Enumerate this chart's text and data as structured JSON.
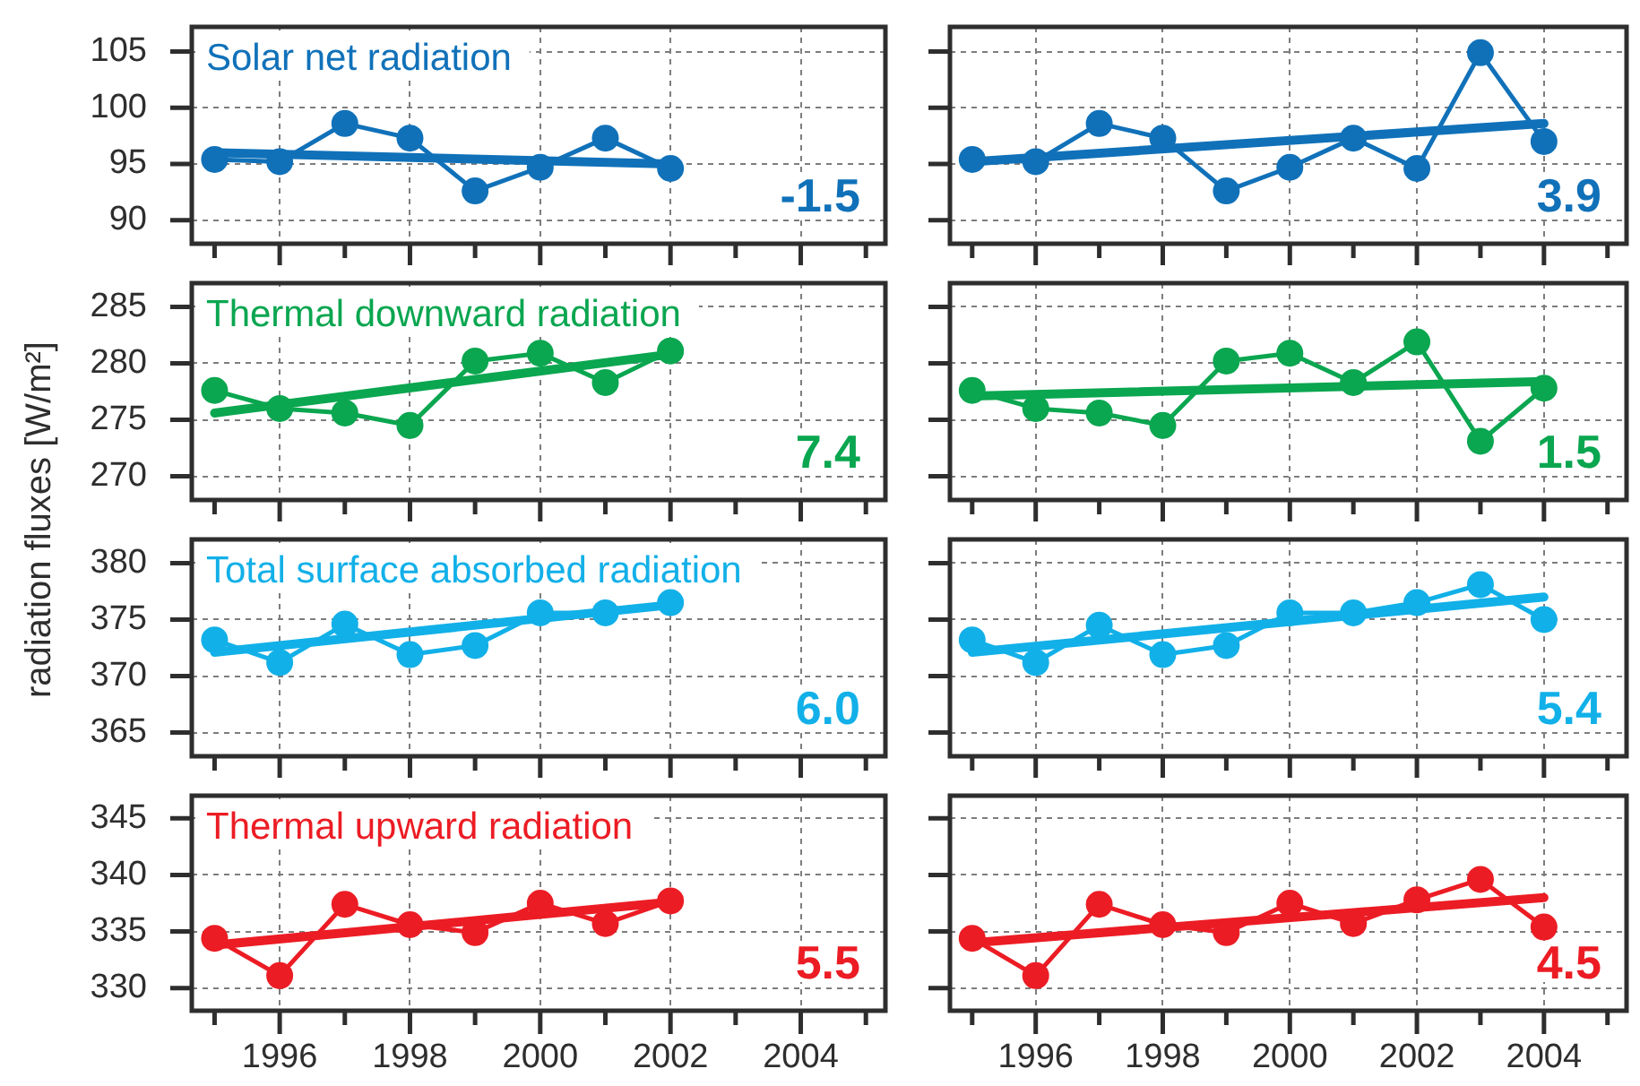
{
  "chart_data": [
    {
      "type": "line",
      "title": "Solar net radiation",
      "x": [
        1995,
        1996,
        1997,
        1998,
        1999,
        2000,
        2001,
        2002
      ],
      "series": [
        {
          "color": "#1071b9",
          "values": [
            95.4,
            95.2,
            98.6,
            97.3,
            92.6,
            94.7,
            97.3,
            94.6
          ]
        },
        {
          "type": "line",
          "color": "#1071b9",
          "x": [
            1995,
            2002
          ],
          "values": [
            96.0,
            95.0
          ],
          "marker": "none"
        }
      ],
      "annotations": [
        "-1.5"
      ],
      "xlim": [
        1994.65,
        2005.3
      ],
      "xticks": [
        {
          "value": 1995,
          "label": null
        },
        1996,
        {
          "value": 1997,
          "label": null
        },
        1998,
        {
          "value": 1999,
          "label": null
        },
        2000,
        {
          "value": 2001,
          "label": null
        },
        2002,
        {
          "value": 2003,
          "label": null
        },
        2004,
        {
          "value": 2005,
          "label": null
        }
      ],
      "ylim": [
        87.9,
        107.2
      ],
      "yticks": [
        90,
        95,
        100,
        105
      ],
      "grid": true,
      "marker": "circle",
      "tick_labels": "y"
    },
    {
      "type": "line",
      "x": [
        1995,
        1996,
        1997,
        1998,
        1999,
        2000,
        2001,
        2002,
        2003,
        2004
      ],
      "series": [
        {
          "color": "#1071b9",
          "values": [
            95.4,
            95.2,
            98.6,
            97.3,
            92.6,
            94.7,
            97.3,
            94.6,
            104.9,
            97.0
          ]
        },
        {
          "type": "line",
          "color": "#1071b9",
          "x": [
            1995,
            2004
          ],
          "values": [
            95.2,
            98.6
          ],
          "marker": "none"
        }
      ],
      "annotations": [
        "3.9"
      ],
      "xlim": [
        1994.65,
        2005.3
      ],
      "xticks": [
        {
          "value": 1995,
          "label": null
        },
        1996,
        {
          "value": 1997,
          "label": null
        },
        1998,
        {
          "value": 1999,
          "label": null
        },
        2000,
        {
          "value": 2001,
          "label": null
        },
        2002,
        {
          "value": 2003,
          "label": null
        },
        2004,
        {
          "value": 2005,
          "label": null
        }
      ],
      "ylim": [
        87.9,
        107.2
      ],
      "yticks": [
        90,
        95,
        100,
        105
      ],
      "grid": true,
      "marker": "circle",
      "tick_labels": false
    },
    {
      "type": "line",
      "title": "Thermal downward radiation",
      "ylabel": "radiation fluxes [W/m²]",
      "x": [
        1995,
        1996,
        1997,
        1998,
        1999,
        2000,
        2001,
        2002
      ],
      "series": [
        {
          "color": "#0aa650",
          "values": [
            277.6,
            276.0,
            275.6,
            274.5,
            280.2,
            280.9,
            278.3,
            281.1
          ]
        },
        {
          "type": "line",
          "color": "#0aa650",
          "x": [
            1995,
            2002
          ],
          "values": [
            275.6,
            280.8
          ],
          "marker": "none"
        }
      ],
      "annotations": [
        "7.4"
      ],
      "xlim": [
        1994.65,
        2005.3
      ],
      "xticks": [
        {
          "value": 1995,
          "label": null
        },
        1996,
        {
          "value": 1997,
          "label": null
        },
        1998,
        {
          "value": 1999,
          "label": null
        },
        2000,
        {
          "value": 2001,
          "label": null
        },
        2002,
        {
          "value": 2003,
          "label": null
        },
        2004,
        {
          "value": 2005,
          "label": null
        }
      ],
      "ylim": [
        267.9,
        287.1
      ],
      "yticks": [
        270,
        275,
        280,
        285
      ],
      "grid": true,
      "marker": "circle",
      "tick_labels": "y"
    },
    {
      "type": "line",
      "x": [
        1995,
        1996,
        1997,
        1998,
        1999,
        2000,
        2001,
        2002,
        2003,
        2004
      ],
      "series": [
        {
          "color": "#0aa650",
          "values": [
            277.6,
            276.0,
            275.6,
            274.5,
            280.2,
            280.9,
            278.3,
            281.9,
            273.1,
            277.8
          ]
        },
        {
          "type": "line",
          "color": "#0aa650",
          "x": [
            1995,
            2004
          ],
          "values": [
            277.1,
            278.4
          ],
          "marker": "none"
        }
      ],
      "annotations": [
        "1.5"
      ],
      "xlim": [
        1994.65,
        2005.3
      ],
      "xticks": [
        {
          "value": 1995,
          "label": null
        },
        1996,
        {
          "value": 1997,
          "label": null
        },
        1998,
        {
          "value": 1999,
          "label": null
        },
        2000,
        {
          "value": 2001,
          "label": null
        },
        2002,
        {
          "value": 2003,
          "label": null
        },
        2004,
        {
          "value": 2005,
          "label": null
        }
      ],
      "ylim": [
        267.9,
        287.1
      ],
      "yticks": [
        270,
        275,
        280,
        285
      ],
      "grid": true,
      "marker": "circle",
      "tick_labels": false
    },
    {
      "type": "line",
      "title": "Total surface absorbed radiation",
      "x": [
        1995,
        1996,
        1997,
        1998,
        1999,
        2000,
        2001,
        2002
      ],
      "series": [
        {
          "color": "#12b0e8",
          "values": [
            373.2,
            371.2,
            374.6,
            371.9,
            372.7,
            375.6,
            375.6,
            376.5
          ]
        },
        {
          "type": "line",
          "color": "#12b0e8",
          "x": [
            1995,
            2002
          ],
          "values": [
            372.1,
            376.3
          ],
          "marker": "none"
        }
      ],
      "annotations": [
        "6.0"
      ],
      "xlim": [
        1994.65,
        2005.3
      ],
      "xticks": [
        {
          "value": 1995,
          "label": null
        },
        1996,
        {
          "value": 1997,
          "label": null
        },
        1998,
        {
          "value": 1999,
          "label": null
        },
        2000,
        {
          "value": 2001,
          "label": null
        },
        2002,
        {
          "value": 2003,
          "label": null
        },
        2004,
        {
          "value": 2005,
          "label": null
        }
      ],
      "ylim": [
        362.9,
        382.1
      ],
      "yticks": [
        365,
        370,
        375,
        380
      ],
      "grid": true,
      "marker": "circle",
      "tick_labels": "y"
    },
    {
      "type": "line",
      "x": [
        1995,
        1996,
        1997,
        1998,
        1999,
        2000,
        2001,
        2002,
        2003,
        2004
      ],
      "series": [
        {
          "color": "#12b0e8",
          "values": [
            373.2,
            371.2,
            374.5,
            371.9,
            372.7,
            375.6,
            375.6,
            376.5,
            378.1,
            375.0
          ]
        },
        {
          "type": "line",
          "color": "#12b0e8",
          "x": [
            1995,
            2004
          ],
          "values": [
            372.1,
            377.0
          ],
          "marker": "none"
        }
      ],
      "annotations": [
        "5.4"
      ],
      "xlim": [
        1994.65,
        2005.3
      ],
      "xticks": [
        {
          "value": 1995,
          "label": null
        },
        1996,
        {
          "value": 1997,
          "label": null
        },
        1998,
        {
          "value": 1999,
          "label": null
        },
        2000,
        {
          "value": 2001,
          "label": null
        },
        2002,
        {
          "value": 2003,
          "label": null
        },
        2004,
        {
          "value": 2005,
          "label": null
        }
      ],
      "ylim": [
        362.9,
        382.1
      ],
      "yticks": [
        365,
        370,
        375,
        380
      ],
      "grid": true,
      "marker": "circle",
      "tick_labels": false
    },
    {
      "type": "line",
      "title": "Thermal upward radiation",
      "x": [
        1995,
        1996,
        1997,
        1998,
        1999,
        2000,
        2001,
        2002
      ],
      "series": [
        {
          "color": "#ec1c24",
          "values": [
            334.4,
            331.1,
            337.4,
            335.6,
            334.9,
            337.5,
            335.7,
            337.7
          ]
        },
        {
          "type": "line",
          "color": "#ec1c24",
          "x": [
            1995,
            2002
          ],
          "values": [
            333.8,
            337.6
          ],
          "marker": "none"
        }
      ],
      "annotations": [
        "5.5"
      ],
      "xlim": [
        1994.65,
        2005.3
      ],
      "xticks": [
        {
          "value": 1995,
          "label": null
        },
        1996,
        {
          "value": 1997,
          "label": null
        },
        1998,
        {
          "value": 1999,
          "label": null
        },
        2000,
        {
          "value": 2001,
          "label": null
        },
        2002,
        {
          "value": 2003,
          "label": null
        },
        2004,
        {
          "value": 2005,
          "label": null
        }
      ],
      "ylim": [
        328,
        347
      ],
      "yticks": [
        330,
        335,
        340,
        345
      ],
      "grid": true,
      "marker": "circle"
    },
    {
      "type": "line",
      "x": [
        1995,
        1996,
        1997,
        1998,
        1999,
        2000,
        2001,
        2002,
        2003,
        2004
      ],
      "series": [
        {
          "color": "#ec1c24",
          "values": [
            334.4,
            331.1,
            337.4,
            335.6,
            334.9,
            337.5,
            335.7,
            337.8,
            339.6,
            335.4
          ]
        },
        {
          "type": "line",
          "color": "#ec1c24",
          "x": [
            1995,
            2004
          ],
          "values": [
            334.0,
            338.0
          ],
          "marker": "none"
        }
      ],
      "annotations": [
        "4.5"
      ],
      "xlim": [
        1994.65,
        2005.3
      ],
      "xticks": [
        {
          "value": 1995,
          "label": null
        },
        1996,
        {
          "value": 1997,
          "label": null
        },
        1998,
        {
          "value": 1999,
          "label": null
        },
        2000,
        {
          "value": 2001,
          "label": null
        },
        2002,
        {
          "value": 2003,
          "label": null
        },
        2004,
        {
          "value": 2005,
          "label": null
        }
      ],
      "ylim": [
        328,
        347
      ],
      "yticks": [
        330,
        335,
        340,
        345
      ],
      "grid": true,
      "marker": "circle",
      "tick_labels": "x"
    }
  ]
}
